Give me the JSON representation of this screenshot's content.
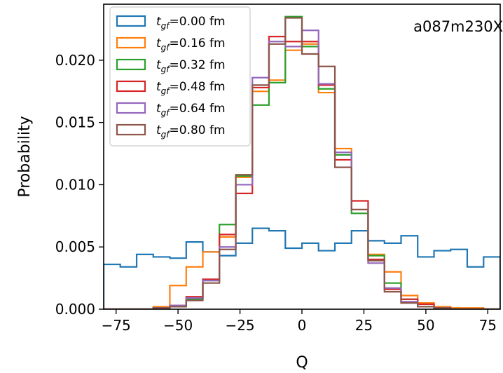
{
  "chart_data": {
    "type": "histogram-step",
    "xlabel": "Q",
    "ylabel": "Probability",
    "annotation": "a087m230X",
    "xlim": [
      -80,
      80
    ],
    "ylim": [
      0,
      0.0245
    ],
    "xticks": [
      -75,
      -50,
      -25,
      0,
      25,
      50,
      75
    ],
    "xtick_labels": [
      "−75",
      "−50",
      "−25",
      "0",
      "25",
      "50",
      "75"
    ],
    "yticks": [
      0.0,
      0.005,
      0.01,
      0.015,
      0.02
    ],
    "ytick_labels": [
      "0.000",
      "0.005",
      "0.010",
      "0.015",
      "0.020"
    ],
    "bin_edges": [
      -80,
      -73.3,
      -66.7,
      -60,
      -53.3,
      -46.7,
      -40,
      -33.3,
      -26.7,
      -20,
      -13.3,
      -6.7,
      0,
      6.7,
      13.3,
      20,
      26.7,
      33.3,
      40,
      46.7,
      53.3,
      60,
      66.7,
      73.3,
      80
    ],
    "legend_position": "top-left",
    "series": [
      {
        "name": "t_gf=0.00 fm",
        "t": "t",
        "sub": "gf",
        "value_label": "=0.00 fm",
        "color": "#1f77b4",
        "values": [
          0.0036,
          0.0034,
          0.0044,
          0.0042,
          0.0041,
          0.0054,
          0.0046,
          0.0043,
          0.0053,
          0.0065,
          0.0063,
          0.0049,
          0.0053,
          0.0047,
          0.0053,
          0.0063,
          0.0055,
          0.0053,
          0.0059,
          0.0042,
          0.0047,
          0.0048,
          0.0034,
          0.0042
        ]
      },
      {
        "name": "t_gf=0.16 fm",
        "t": "t",
        "sub": "gf",
        "value_label": "=0.16 fm",
        "color": "#ff7f0e",
        "values": [
          0.0,
          0.0,
          0.0,
          0.0002,
          0.0019,
          0.0034,
          0.0046,
          0.0058,
          0.0106,
          0.0175,
          0.0184,
          0.0208,
          0.0213,
          0.0174,
          0.0129,
          0.008,
          0.0044,
          0.003,
          0.0011,
          0.0005,
          0.0002,
          0.0001,
          0.0001,
          0.0
        ]
      },
      {
        "name": "t_gf=0.32 fm",
        "t": "t",
        "sub": "gf",
        "value_label": "=0.32 fm",
        "color": "#2ca02c",
        "values": [
          0.0,
          0.0,
          0.0,
          0.0001,
          0.0002,
          0.0008,
          0.0023,
          0.0068,
          0.0107,
          0.0164,
          0.0182,
          0.0235,
          0.0211,
          0.0177,
          0.0124,
          0.0077,
          0.0043,
          0.0021,
          0.0008,
          0.0002,
          0.0001,
          0.0,
          0.0,
          0.0
        ]
      },
      {
        "name": "t_gf=0.48 fm",
        "t": "t",
        "sub": "gf",
        "value_label": "=0.48 fm",
        "color": "#d62728",
        "values": [
          0.0,
          0.0,
          0.0,
          0.0001,
          0.0003,
          0.001,
          0.0024,
          0.006,
          0.0093,
          0.0178,
          0.0219,
          0.0215,
          0.0215,
          0.018,
          0.012,
          0.0087,
          0.004,
          0.0016,
          0.0008,
          0.0004,
          0.0001,
          0.0,
          0.0,
          0.0
        ]
      },
      {
        "name": "t_gf=0.64 fm",
        "t": "t",
        "sub": "gf",
        "value_label": "=0.64 fm",
        "color": "#9467bd",
        "values": [
          0.0,
          0.0,
          0.0,
          0.0001,
          0.0003,
          0.0009,
          0.0023,
          0.005,
          0.01,
          0.0186,
          0.0215,
          0.0211,
          0.0224,
          0.0181,
          0.0126,
          0.008,
          0.0037,
          0.0017,
          0.0006,
          0.0002,
          0.0001,
          0.0,
          0.0,
          0.0
        ]
      },
      {
        "name": "t_gf=0.80 fm",
        "t": "t",
        "sub": "gf",
        "value_label": "=0.80 fm",
        "color": "#8c564b",
        "values": [
          0.0,
          0.0,
          0.0,
          0.0001,
          0.0002,
          0.0007,
          0.0021,
          0.0048,
          0.0108,
          0.018,
          0.0213,
          0.0234,
          0.0205,
          0.0195,
          0.0114,
          0.008,
          0.0039,
          0.0014,
          0.0005,
          0.0002,
          0.0001,
          0.0,
          0.0,
          0.0
        ]
      }
    ]
  }
}
